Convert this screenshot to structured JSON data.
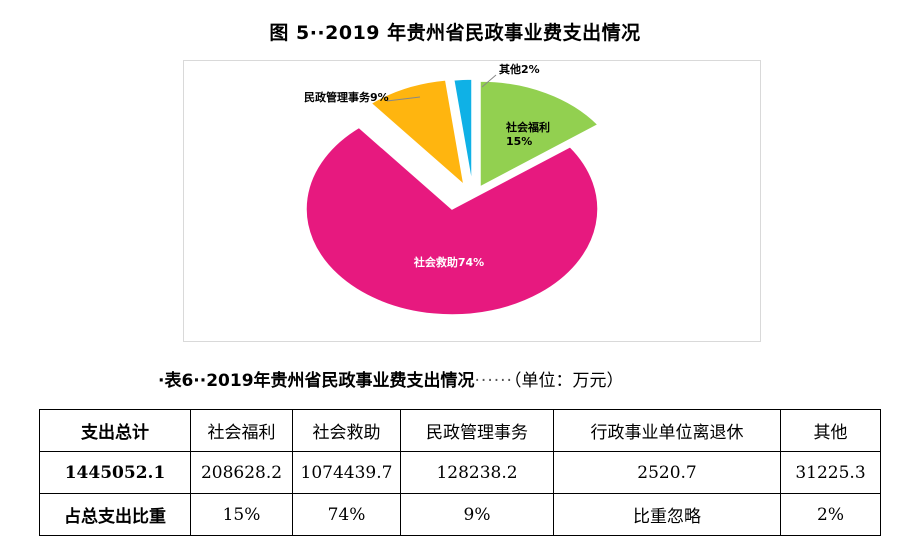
{
  "figure": {
    "title": "图 5··2019 年贵州省民政事业费支出情况"
  },
  "chart_data": {
    "type": "pie",
    "title": "图 5··2019 年贵州省民政事业费支出情况",
    "slices": [
      {
        "name": "社会福利",
        "percent": 15,
        "label": "社会福利\n15%",
        "color": "#92d050"
      },
      {
        "name": "社会救助",
        "percent": 74,
        "label": "社会救助74%",
        "color": "#e7197f"
      },
      {
        "name": "民政管理事务",
        "percent": 9,
        "label": "民政管理事务9%",
        "color": "#ffb50f"
      },
      {
        "name": "其他",
        "percent": 2,
        "label": "其他2%",
        "color": "#0fb1e6"
      }
    ]
  },
  "table": {
    "title_prefix": "·表6··2019年贵州省民政事业费支出情况",
    "title_dots": "······",
    "unit": "（单位：万元）",
    "headers": [
      "支出总计",
      "社会福利",
      "社会救助",
      "民政管理事务",
      "行政事业单位离退休",
      "其他"
    ],
    "rows": [
      [
        "1445052.1",
        "208628.2",
        "1074439.7",
        "128238.2",
        "2520.7",
        "31225.3"
      ],
      [
        "占总支出比重",
        "15%",
        "74%",
        "9%",
        "比重忽略",
        "2%"
      ]
    ]
  }
}
